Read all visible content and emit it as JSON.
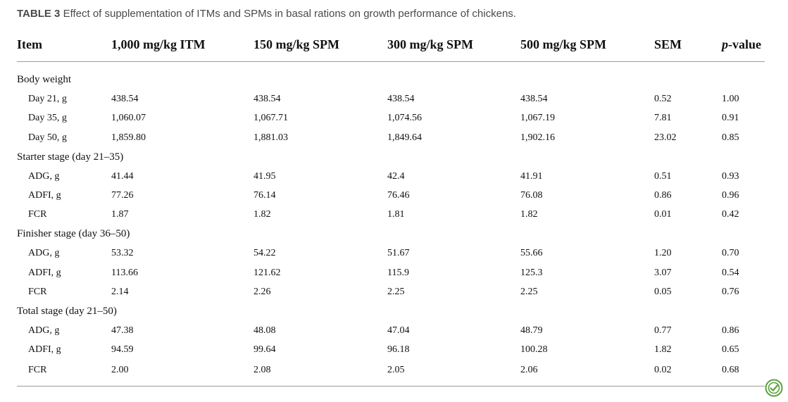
{
  "caption": {
    "label": "TABLE 3",
    "text": "Effect of supplementation of ITMs and SPMs in basal rations on growth performance of chickens."
  },
  "headers": {
    "item": "Item",
    "itm1000": "1,000 mg/kg ITM",
    "spm150": "150 mg/kg SPM",
    "spm300": "300 mg/kg SPM",
    "spm500": "500 mg/kg SPM",
    "sem": "SEM",
    "p_italic": "p",
    "p_rest": "-value"
  },
  "groups": [
    {
      "title": "Body weight",
      "rows": [
        {
          "item": "Day 21, g",
          "v1": "438.54",
          "v2": "438.54",
          "v3": "438.54",
          "v4": "438.54",
          "sem": "0.52",
          "p": "1.00"
        },
        {
          "item": "Day 35, g",
          "v1": "1,060.07",
          "v2": "1,067.71",
          "v3": "1,074.56",
          "v4": "1,067.19",
          "sem": "7.81",
          "p": "0.91"
        },
        {
          "item": "Day 50, g",
          "v1": "1,859.80",
          "v2": "1,881.03",
          "v3": "1,849.64",
          "v4": "1,902.16",
          "sem": "23.02",
          "p": "0.85"
        }
      ]
    },
    {
      "title": "Starter stage (day 21–35)",
      "rows": [
        {
          "item": "ADG, g",
          "v1": "41.44",
          "v2": "41.95",
          "v3": "42.4",
          "v4": "41.91",
          "sem": "0.51",
          "p": "0.93"
        },
        {
          "item": "ADFI, g",
          "v1": "77.26",
          "v2": "76.14",
          "v3": "76.46",
          "v4": "76.08",
          "sem": "0.86",
          "p": "0.96"
        },
        {
          "item": "FCR",
          "v1": "1.87",
          "v2": "1.82",
          "v3": "1.81",
          "v4": "1.82",
          "sem": "0.01",
          "p": "0.42"
        }
      ]
    },
    {
      "title": "Finisher stage (day 36–50)",
      "rows": [
        {
          "item": "ADG, g",
          "v1": "53.32",
          "v2": "54.22",
          "v3": "51.67",
          "v4": "55.66",
          "sem": "1.20",
          "p": "0.70"
        },
        {
          "item": "ADFI, g",
          "v1": "113.66",
          "v2": "121.62",
          "v3": "115.9",
          "v4": "125.3",
          "sem": "3.07",
          "p": "0.54"
        },
        {
          "item": "FCR",
          "v1": "2.14",
          "v2": "2.26",
          "v3": "2.25",
          "v4": "2.25",
          "sem": "0.05",
          "p": "0.76"
        }
      ]
    },
    {
      "title": "Total stage (day 21–50)",
      "rows": [
        {
          "item": "ADG, g",
          "v1": "47.38",
          "v2": "48.08",
          "v3": "47.04",
          "v4": "48.79",
          "sem": "0.77",
          "p": "0.86"
        },
        {
          "item": "ADFI, g",
          "v1": "94.59",
          "v2": "99.64",
          "v3": "96.18",
          "v4": "100.28",
          "sem": "1.82",
          "p": "0.65"
        },
        {
          "item": "FCR",
          "v1": "2.00",
          "v2": "2.08",
          "v3": "2.05",
          "v4": "2.06",
          "sem": "0.02",
          "p": "0.68"
        }
      ]
    }
  ],
  "icons": {
    "badge": "check-updates-icon"
  },
  "colors": {
    "caption": "#4a4a4a",
    "badge": "#5aa33c",
    "rule": "#9a9a9a"
  }
}
